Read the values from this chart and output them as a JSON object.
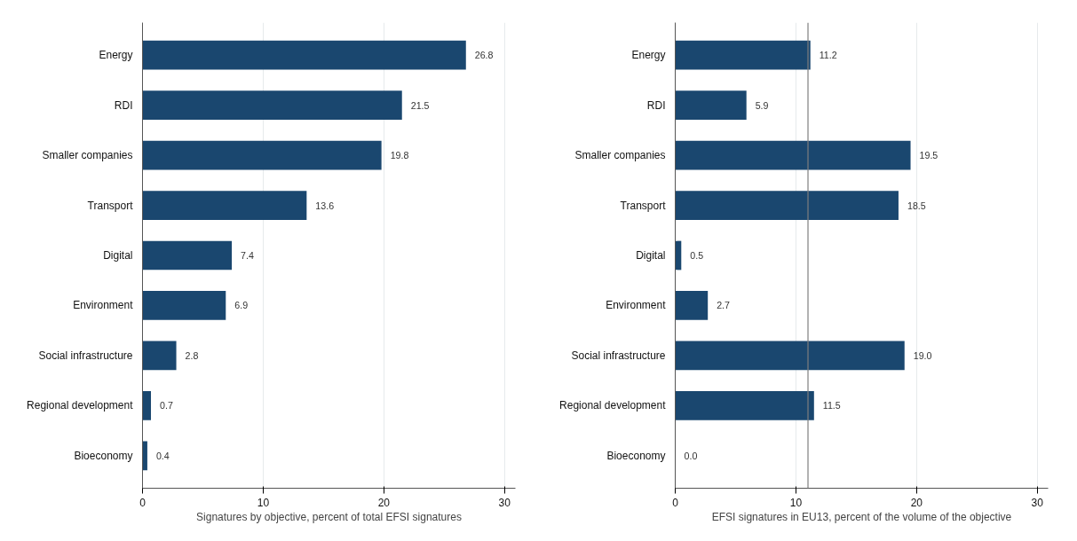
{
  "chart_data": [
    {
      "type": "bar",
      "orientation": "horizontal",
      "xlabel": "Signatures by objective, percent of total EFSI signatures",
      "categories": [
        "Energy",
        "RDI",
        "Smaller companies",
        "Transport",
        "Digital",
        "Environment",
        "Social infrastructure",
        "Regional development",
        "Bioeconomy"
      ],
      "values": [
        26.8,
        21.5,
        19.8,
        13.6,
        7.4,
        6.9,
        2.8,
        0.7,
        0.4
      ],
      "color": "#1a476f",
      "xlim": [
        0,
        30.9
      ],
      "xticks": [
        0,
        10,
        20,
        30
      ],
      "grid": "x",
      "data_labels": true
    },
    {
      "type": "bar",
      "orientation": "horizontal",
      "xlabel": "EFSI signatures in EU13, percent of the volume of the objective",
      "categories": [
        "Energy",
        "RDI",
        "Smaller companies",
        "Transport",
        "Digital",
        "Environment",
        "Social infrastructure",
        "Regional development",
        "Bioeconomy"
      ],
      "values": [
        11.2,
        5.9,
        19.5,
        18.5,
        0.5,
        2.7,
        19.0,
        11.5,
        0.0
      ],
      "color": "#1a476f",
      "value_labels": [
        "11.2",
        "5.9",
        "19.5",
        "18.5",
        "0.5",
        "2.7",
        "19.0",
        "11.5",
        "0.0"
      ],
      "xlim": [
        0,
        30.9
      ],
      "xticks": [
        0,
        10,
        20,
        30
      ],
      "grid": "x",
      "ref_lines": [
        {
          "axis": "x",
          "value": 11.0,
          "color": "#7f7f7f"
        }
      ]
    }
  ]
}
